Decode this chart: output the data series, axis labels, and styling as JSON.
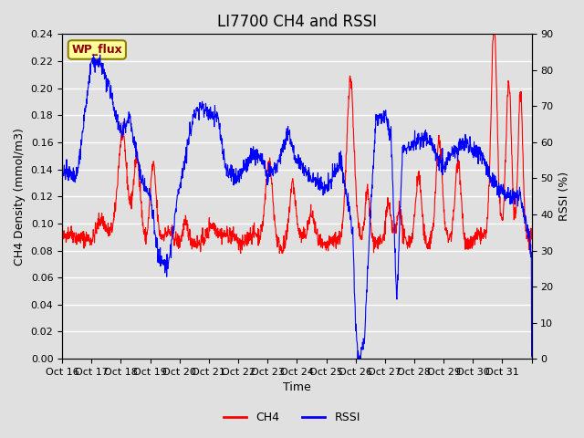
{
  "title": "LI7700 CH4 and RSSI",
  "xlabel": "Time",
  "ylabel_left": "CH4 Density (mmol/m3)",
  "ylabel_right": "RSSI (%)",
  "ylim_left": [
    0.0,
    0.24
  ],
  "ylim_right": [
    0,
    90
  ],
  "yticks_left": [
    0.0,
    0.02,
    0.04,
    0.06,
    0.08,
    0.1,
    0.12,
    0.14,
    0.16,
    0.18,
    0.2,
    0.22,
    0.24
  ],
  "yticks_right": [
    0,
    10,
    20,
    30,
    40,
    50,
    60,
    70,
    80,
    90
  ],
  "xtick_positions": [
    15,
    16,
    17,
    18,
    19,
    20,
    21,
    22,
    23,
    24,
    25,
    26,
    27,
    28,
    29,
    30,
    31
  ],
  "xtick_labels": [
    "Oct 16",
    "Oct 17",
    "Oct 18",
    "Oct 19",
    "Oct 20",
    "Oct 21",
    "Oct 22",
    "Oct 23",
    "Oct 24",
    "Oct 25",
    "Oct 26",
    "Oct 27",
    "Oct 28",
    "Oct 29",
    "Oct 30",
    "Oct 31",
    ""
  ],
  "xlim": [
    15,
    31
  ],
  "ch4_color": "#FF0000",
  "rssi_color": "#0000FF",
  "bg_color": "#E0E0E0",
  "annotation_text": "WP_flux",
  "annotation_bg": "#FFFF99",
  "annotation_border": "#8B8000",
  "title_fontsize": 12,
  "axis_label_fontsize": 9,
  "tick_fontsize": 8
}
